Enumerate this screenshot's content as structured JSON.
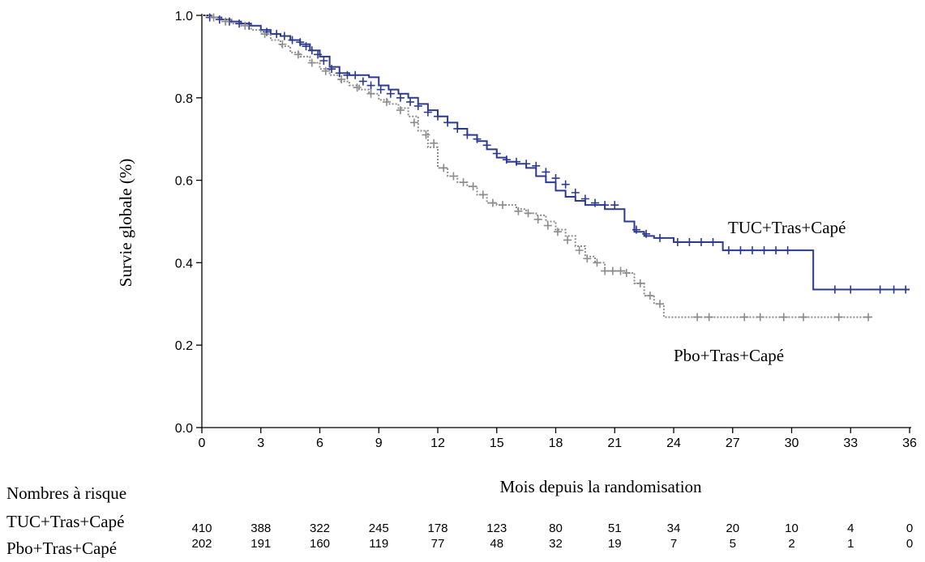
{
  "chart_data": {
    "type": "line",
    "ylabel": "Survie globale (%)",
    "xlabel": "Mois depuis la randomisation",
    "xlim": [
      0,
      36
    ],
    "ylim": [
      0,
      1.0
    ],
    "xticks": [
      0,
      3,
      6,
      9,
      12,
      15,
      18,
      21,
      24,
      27,
      30,
      33,
      36
    ],
    "xtick_labels": [
      "0",
      "3",
      "6",
      "9",
      "12",
      "15",
      "18",
      "21",
      "24",
      "27",
      "30",
      "33",
      "36"
    ],
    "yticks": [
      0.0,
      0.2,
      0.4,
      0.6,
      0.8,
      1.0
    ],
    "ytick_labels": [
      "0.0",
      "0.2",
      "0.4",
      "0.6",
      "0.8",
      "1.0"
    ],
    "grid": false,
    "series": [
      {
        "name": "TUC+Tras+Capé",
        "color": "#2b3a8f",
        "style": "solid",
        "x": [
          0,
          0.5,
          1,
          1.5,
          2,
          2.5,
          3,
          3.5,
          4,
          4.5,
          5,
          5.5,
          6,
          6.5,
          7,
          7.5,
          8,
          8.5,
          9,
          9.5,
          10,
          10.5,
          11,
          11.5,
          12,
          12.5,
          13,
          13.5,
          14,
          14.5,
          15,
          15.5,
          16,
          16.5,
          17,
          17.5,
          18,
          18.5,
          19,
          19.5,
          20,
          20.5,
          21,
          21.5,
          22,
          22.5,
          23,
          23.5,
          24,
          25,
          26,
          26.5,
          27,
          28,
          29,
          30,
          31,
          31.1,
          32,
          33,
          34,
          35,
          36
        ],
        "y": [
          1.0,
          0.995,
          0.99,
          0.985,
          0.98,
          0.975,
          0.965,
          0.955,
          0.95,
          0.94,
          0.93,
          0.915,
          0.9,
          0.875,
          0.86,
          0.855,
          0.855,
          0.85,
          0.83,
          0.82,
          0.81,
          0.8,
          0.785,
          0.77,
          0.755,
          0.74,
          0.725,
          0.71,
          0.695,
          0.675,
          0.655,
          0.645,
          0.64,
          0.63,
          0.61,
          0.595,
          0.575,
          0.56,
          0.55,
          0.54,
          0.54,
          0.53,
          0.53,
          0.5,
          0.475,
          0.465,
          0.46,
          0.46,
          0.45,
          0.45,
          0.45,
          0.43,
          0.43,
          0.43,
          0.43,
          0.43,
          0.43,
          0.335,
          0.335,
          0.335,
          0.335,
          0.335,
          0.335
        ],
        "censor_x": [
          0.4,
          0.9,
          1.4,
          1.9,
          2.4,
          3.3,
          3.8,
          4.2,
          4.6,
          5.0,
          5.3,
          5.6,
          5.9,
          6.2,
          6.6,
          7.0,
          7.4,
          7.8,
          8.2,
          8.6,
          9.1,
          9.6,
          10.1,
          10.6,
          11.0,
          11.5,
          12.0,
          12.5,
          13.0,
          13.5,
          14.0,
          14.5,
          15.0,
          15.5,
          16.0,
          16.5,
          17.0,
          17.5,
          18.0,
          18.5,
          19.0,
          19.5,
          20.0,
          20.5,
          21.0,
          22.1,
          22.6,
          23.3,
          24.2,
          24.8,
          25.4,
          26.0,
          26.8,
          27.4,
          28.0,
          28.6,
          29.2,
          29.8,
          32.2,
          33.0,
          34.5,
          35.2,
          35.8
        ],
        "censor_y": [
          0.995,
          0.99,
          0.985,
          0.98,
          0.975,
          0.96,
          0.955,
          0.95,
          0.94,
          0.935,
          0.925,
          0.915,
          0.905,
          0.89,
          0.87,
          0.86,
          0.855,
          0.855,
          0.84,
          0.83,
          0.82,
          0.81,
          0.8,
          0.79,
          0.78,
          0.765,
          0.755,
          0.74,
          0.725,
          0.71,
          0.7,
          0.685,
          0.665,
          0.65,
          0.645,
          0.64,
          0.635,
          0.62,
          0.605,
          0.59,
          0.57,
          0.555,
          0.545,
          0.54,
          0.54,
          0.48,
          0.47,
          0.46,
          0.45,
          0.45,
          0.45,
          0.45,
          0.43,
          0.43,
          0.43,
          0.43,
          0.43,
          0.43,
          0.335,
          0.335,
          0.335,
          0.335,
          0.335
        ]
      },
      {
        "name": "Pbo+Tras+Capé",
        "color": "#8c8c8c",
        "style": "dotted",
        "x": [
          0,
          0.5,
          1,
          1.5,
          2,
          2.5,
          3,
          3.5,
          4,
          4.5,
          5,
          5.5,
          6,
          6.5,
          7,
          7.5,
          8,
          8.5,
          9,
          9.5,
          10,
          10.5,
          11,
          11.5,
          12,
          12.5,
          13,
          13.5,
          14,
          14.5,
          15,
          15.5,
          16,
          16.5,
          17,
          17.5,
          18,
          18.5,
          19,
          19.5,
          20,
          20.5,
          21,
          21.5,
          22,
          22.5,
          23,
          23.5,
          24,
          25,
          26,
          27,
          28,
          29,
          30,
          31,
          32,
          33,
          34
        ],
        "y": [
          1.0,
          0.995,
          0.99,
          0.98,
          0.975,
          0.965,
          0.955,
          0.94,
          0.925,
          0.91,
          0.9,
          0.885,
          0.87,
          0.855,
          0.84,
          0.83,
          0.82,
          0.81,
          0.795,
          0.785,
          0.775,
          0.755,
          0.72,
          0.68,
          0.63,
          0.61,
          0.595,
          0.585,
          0.565,
          0.545,
          0.54,
          0.54,
          0.53,
          0.52,
          0.515,
          0.5,
          0.48,
          0.465,
          0.44,
          0.415,
          0.4,
          0.38,
          0.38,
          0.375,
          0.35,
          0.32,
          0.3,
          0.268,
          0.268,
          0.268,
          0.268,
          0.268,
          0.268,
          0.268,
          0.268,
          0.268,
          0.268,
          0.268,
          0.268
        ],
        "censor_x": [
          0.6,
          1.2,
          2.2,
          3.2,
          4.1,
          4.9,
          5.6,
          6.3,
          7.1,
          7.9,
          8.6,
          9.4,
          10.1,
          10.8,
          11.4,
          11.8,
          12.3,
          12.8,
          13.3,
          13.8,
          14.3,
          14.8,
          15.3,
          16.1,
          16.6,
          17.1,
          17.6,
          18.1,
          18.6,
          19.2,
          19.6,
          20.1,
          20.5,
          20.9,
          21.3,
          21.6,
          22.3,
          22.8,
          23.3,
          25.2,
          25.8,
          27.6,
          28.4,
          29.6,
          30.6,
          32.4,
          33.9
        ],
        "censor_y": [
          0.995,
          0.985,
          0.975,
          0.955,
          0.93,
          0.905,
          0.885,
          0.865,
          0.845,
          0.825,
          0.81,
          0.79,
          0.77,
          0.74,
          0.71,
          0.69,
          0.63,
          0.61,
          0.595,
          0.585,
          0.565,
          0.545,
          0.54,
          0.525,
          0.52,
          0.505,
          0.49,
          0.475,
          0.455,
          0.43,
          0.41,
          0.4,
          0.38,
          0.38,
          0.38,
          0.375,
          0.35,
          0.32,
          0.3,
          0.268,
          0.268,
          0.268,
          0.268,
          0.268,
          0.268,
          0.268,
          0.268
        ]
      }
    ],
    "annotations": [
      {
        "text": "TUC+Tras+Capé",
        "x": 0,
        "y": 0
      },
      {
        "text": "Pbo+Tras+Capé",
        "x": 0,
        "y": 0
      }
    ],
    "risk_table": {
      "title": "Nombres à risque",
      "rows": [
        {
          "label": "TUC+Tras+Capé",
          "values": [
            "410",
            "388",
            "322",
            "245",
            "178",
            "123",
            "80",
            "51",
            "34",
            "20",
            "10",
            "4",
            "0"
          ]
        },
        {
          "label": "Pbo+Tras+Capé",
          "values": [
            "202",
            "191",
            "160",
            "119",
            "77",
            "48",
            "32",
            "19",
            "7",
            "5",
            "2",
            "1",
            "0"
          ]
        }
      ]
    }
  }
}
